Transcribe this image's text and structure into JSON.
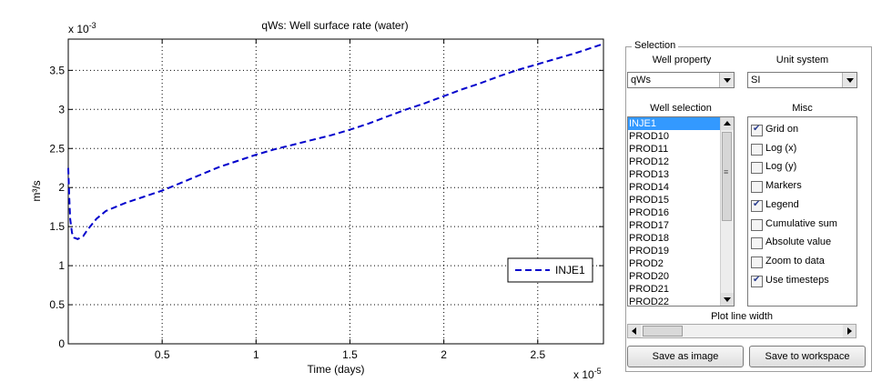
{
  "chart_data": {
    "type": "line",
    "title": "qWs: Well surface rate (water)",
    "xlabel": "Time (days)",
    "ylabel": "m³/s",
    "x_exponent": "x 10",
    "x_exponent_power": "-5",
    "y_exponent": "x 10",
    "y_exponent_power": "-3",
    "xlim": [
      0,
      2.85
    ],
    "ylim": [
      0,
      3.9
    ],
    "x_ticks": [
      0.5,
      1,
      1.5,
      2,
      2.5
    ],
    "x_tick_labels": [
      "0.5",
      "1",
      "1.5",
      "2",
      "2.5"
    ],
    "y_ticks": [
      0,
      0.5,
      1,
      1.5,
      2,
      2.5,
      3,
      3.5
    ],
    "y_tick_labels": [
      "0",
      "0.5",
      "1",
      "1.5",
      "2",
      "2.5",
      "3",
      "3.5"
    ],
    "grid": true,
    "legend_position": "right",
    "series": [
      {
        "name": "INJE1",
        "color": "#0000cc",
        "style": "dashed",
        "x": [
          0.0,
          0.005,
          0.01,
          0.02,
          0.03,
          0.05,
          0.08,
          0.1,
          0.15,
          0.2,
          0.3,
          0.4,
          0.5,
          0.6,
          0.7,
          0.8,
          0.9,
          1.0,
          1.1,
          1.2,
          1.3,
          1.4,
          1.5,
          1.6,
          1.7,
          1.8,
          1.9,
          2.0,
          2.1,
          2.2,
          2.3,
          2.4,
          2.5,
          2.6,
          2.7,
          2.8,
          2.85
        ],
        "y": [
          2.25,
          1.9,
          1.6,
          1.42,
          1.36,
          1.34,
          1.38,
          1.45,
          1.6,
          1.7,
          1.8,
          1.88,
          1.96,
          2.06,
          2.16,
          2.26,
          2.34,
          2.42,
          2.49,
          2.55,
          2.61,
          2.67,
          2.74,
          2.82,
          2.91,
          3.0,
          3.08,
          3.17,
          3.26,
          3.34,
          3.43,
          3.51,
          3.58,
          3.65,
          3.72,
          3.8,
          3.84
        ]
      }
    ]
  },
  "panel": {
    "group_title": "Selection",
    "well_property_label": "Well property",
    "well_property_value": "qWs",
    "unit_system_label": "Unit system",
    "unit_system_value": "SI",
    "well_selection_label": "Well selection",
    "misc_label": "Misc",
    "wells": [
      {
        "name": "INJE1",
        "selected": true
      },
      {
        "name": "PROD10"
      },
      {
        "name": "PROD11"
      },
      {
        "name": "PROD12"
      },
      {
        "name": "PROD13"
      },
      {
        "name": "PROD14"
      },
      {
        "name": "PROD15"
      },
      {
        "name": "PROD16"
      },
      {
        "name": "PROD17"
      },
      {
        "name": "PROD18"
      },
      {
        "name": "PROD19"
      },
      {
        "name": "PROD2"
      },
      {
        "name": "PROD20"
      },
      {
        "name": "PROD21"
      },
      {
        "name": "PROD22"
      }
    ],
    "misc": [
      {
        "label": "Grid on",
        "checked": true
      },
      {
        "label": "Log (x)",
        "checked": false
      },
      {
        "label": "Log (y)",
        "checked": false
      },
      {
        "label": "Markers",
        "checked": false
      },
      {
        "label": "Legend",
        "checked": true
      },
      {
        "label": "Cumulative sum",
        "checked": false
      },
      {
        "label": "Absolute value",
        "checked": false
      },
      {
        "label": "Zoom to data",
        "checked": false
      },
      {
        "label": "Use timesteps",
        "checked": true
      }
    ],
    "line_width_label": "Plot line width",
    "save_image_label": "Save as image",
    "save_workspace_label": "Save to workspace"
  }
}
